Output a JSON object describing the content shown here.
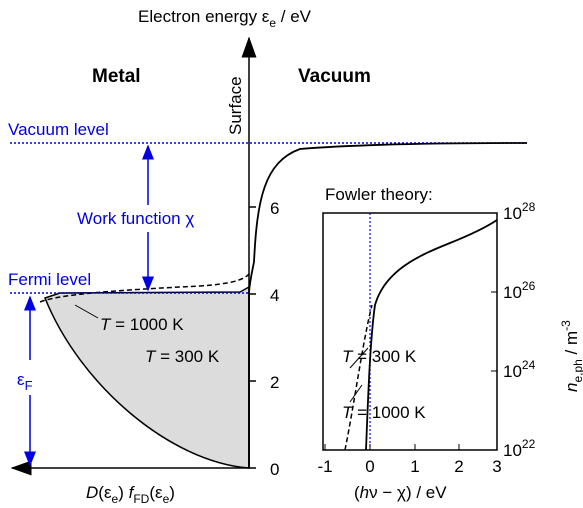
{
  "main_axis": {
    "title": [
      "Electron energy ε",
      "e",
      " / eV"
    ],
    "ticks": [
      "0",
      "2",
      "4",
      "6"
    ],
    "surface": "Surface"
  },
  "regions": {
    "metal": "Metal",
    "vacuum": "Vacuum"
  },
  "levels": {
    "vacuum": "Vacuum level",
    "fermi": "Fermi level",
    "work_function": "Work function χ",
    "fermi_energy": [
      "ε",
      "F"
    ]
  },
  "x_label": [
    "D",
    "(ε",
    "e",
    ") ",
    "f",
    "FD",
    "(ε",
    "e",
    ")"
  ],
  "curves": [
    {
      "symbol": "T",
      "label": " = 1000 K"
    },
    {
      "symbol": "T",
      "label": " = 300 K"
    }
  ],
  "inset": {
    "title": "Fowler theory:",
    "xticks": [
      "-1",
      "0",
      "1",
      "2",
      "3"
    ],
    "yticks": [
      [
        "10",
        "22"
      ],
      [
        "10",
        "24"
      ],
      [
        "10",
        "26"
      ],
      [
        "10",
        "28"
      ]
    ],
    "x_label": [
      "(",
      "h",
      "ν − χ) / eV"
    ],
    "y_label": [
      "n",
      "e,ph",
      " / m",
      "-3"
    ],
    "curves": [
      {
        "symbol": "T",
        "label": " = 300 K"
      },
      {
        "symbol": "T",
        "label": " = 1000 K"
      }
    ]
  }
}
